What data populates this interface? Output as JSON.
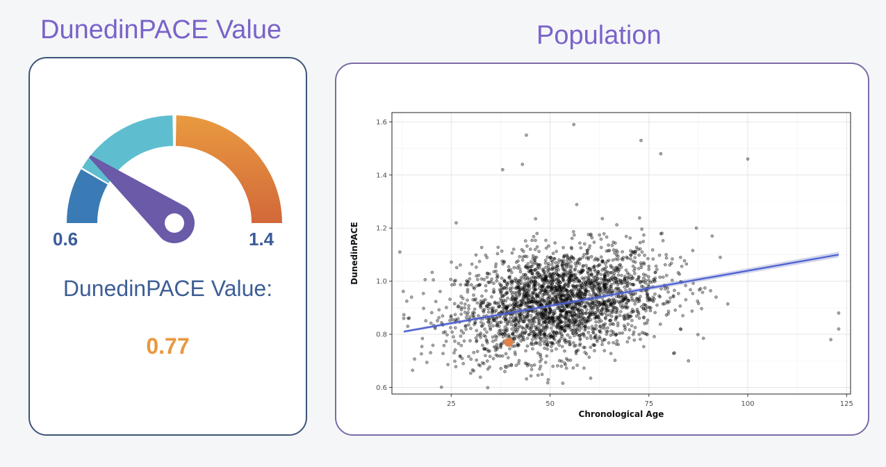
{
  "gauge": {
    "title": "DunedinPACE Value",
    "min_label": "0.6",
    "max_label": "1.4",
    "min": 0.6,
    "max": 1.4,
    "value": 0.77,
    "value_label": "DunedinPACE Value:",
    "value_text": "0.77",
    "colors": {
      "low": "#3a7bb5",
      "mid": "#5ebecf",
      "high_top": "#e99a3f",
      "high_bottom": "#d2683a",
      "needle": "#6a5aa8"
    }
  },
  "population": {
    "title": "Population"
  },
  "chart_data": {
    "type": "scatter",
    "xlabel": "Chronological Age",
    "ylabel": "DunedinPACE",
    "xlim": [
      10,
      126
    ],
    "ylim": [
      0.575,
      1.635
    ],
    "x_ticks": [
      25,
      50,
      75,
      100,
      125
    ],
    "y_ticks": [
      0.6,
      0.8,
      1.0,
      1.2,
      1.4,
      1.6
    ],
    "x_tick_labels": [
      "25",
      "50",
      "75",
      "100",
      "125"
    ],
    "y_tick_labels": [
      "0.6",
      "0.8",
      "1.0",
      "1.2",
      "1.4",
      "1.6"
    ],
    "grid": true,
    "population_cloud": {
      "age_mean": 52,
      "age_sd": 13,
      "pace_mean": 0.92,
      "pace_sd": 0.1,
      "n_points": 2600
    },
    "outliers": [
      {
        "x": 44,
        "y": 1.55
      },
      {
        "x": 56,
        "y": 1.59
      },
      {
        "x": 73,
        "y": 1.53
      },
      {
        "x": 100,
        "y": 1.46
      },
      {
        "x": 38,
        "y": 1.42
      },
      {
        "x": 43,
        "y": 1.44
      },
      {
        "x": 12,
        "y": 1.11
      },
      {
        "x": 123,
        "y": 0.88
      },
      {
        "x": 123,
        "y": 0.82
      },
      {
        "x": 121,
        "y": 0.78
      },
      {
        "x": 13,
        "y": 0.86
      },
      {
        "x": 14,
        "y": 0.83
      },
      {
        "x": 87,
        "y": 1.2
      },
      {
        "x": 91,
        "y": 1.17
      },
      {
        "x": 92,
        "y": 0.94
      },
      {
        "x": 85,
        "y": 0.7
      },
      {
        "x": 78,
        "y": 1.48
      }
    ],
    "trend_line": {
      "x": [
        13,
        123
      ],
      "y": [
        0.81,
        1.1
      ],
      "color": "#4a5fd0"
    },
    "highlight_point": {
      "x": 39.5,
      "y": 0.77,
      "color": "#e0824a"
    }
  }
}
